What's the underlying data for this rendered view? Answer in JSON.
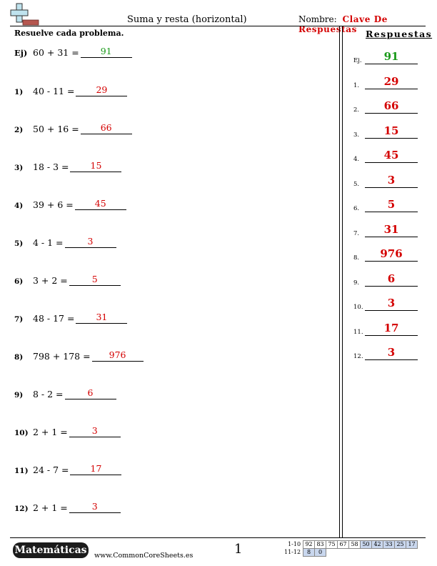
{
  "header": {
    "title": "Suma y resta (horizontal)",
    "nombre_label": "Nombre:",
    "nombre_value": "Clave De Respuestas"
  },
  "instructions": "Resuelve cada problema.",
  "problems": [
    {
      "num": "Ej)",
      "expr": "60 + 31 =",
      "answer": "91"
    },
    {
      "num": "1)",
      "expr": "40 - 11 =",
      "answer": "29"
    },
    {
      "num": "2)",
      "expr": "50 + 16 =",
      "answer": "66"
    },
    {
      "num": "3)",
      "expr": "18 - 3 =",
      "answer": "15"
    },
    {
      "num": "4)",
      "expr": "39 + 6 =",
      "answer": "45"
    },
    {
      "num": "5)",
      "expr": "4 - 1 =",
      "answer": "3"
    },
    {
      "num": "6)",
      "expr": "3 + 2 =",
      "answer": "5"
    },
    {
      "num": "7)",
      "expr": "48 - 17 =",
      "answer": "31"
    },
    {
      "num": "8)",
      "expr": "798 + 178 =",
      "answer": "976"
    },
    {
      "num": "9)",
      "expr": "8 - 2 =",
      "answer": "6"
    },
    {
      "num": "10)",
      "expr": "2 + 1 =",
      "answer": "3"
    },
    {
      "num": "11)",
      "expr": "24 - 7 =",
      "answer": "17"
    },
    {
      "num": "12)",
      "expr": "2 + 1 =",
      "answer": "3"
    }
  ],
  "answer_key": {
    "heading": "Respuestas",
    "items": [
      {
        "label": "Ej.",
        "value": "91"
      },
      {
        "label": "1.",
        "value": "29"
      },
      {
        "label": "2.",
        "value": "66"
      },
      {
        "label": "3.",
        "value": "15"
      },
      {
        "label": "4.",
        "value": "45"
      },
      {
        "label": "5.",
        "value": "3"
      },
      {
        "label": "6.",
        "value": "5"
      },
      {
        "label": "7.",
        "value": "31"
      },
      {
        "label": "8.",
        "value": "976"
      },
      {
        "label": "9.",
        "value": "6"
      },
      {
        "label": "10.",
        "value": "3"
      },
      {
        "label": "11.",
        "value": "17"
      },
      {
        "label": "12.",
        "value": "3"
      }
    ]
  },
  "footer": {
    "brand": "Matemáticas",
    "website": "www.CommonCoreSheets.es",
    "page_number": "1",
    "score_rows": [
      {
        "label": "1-10",
        "cells": [
          "92",
          "83",
          "75",
          "67",
          "58",
          "50",
          "42",
          "33",
          "25",
          "17"
        ]
      },
      {
        "label": "11-12",
        "cells": [
          "8",
          "0"
        ]
      }
    ]
  },
  "colors": {
    "answer_red": "#d40000",
    "example_green": "#1a9a1a",
    "score_highlight": "#c9d7ee"
  }
}
